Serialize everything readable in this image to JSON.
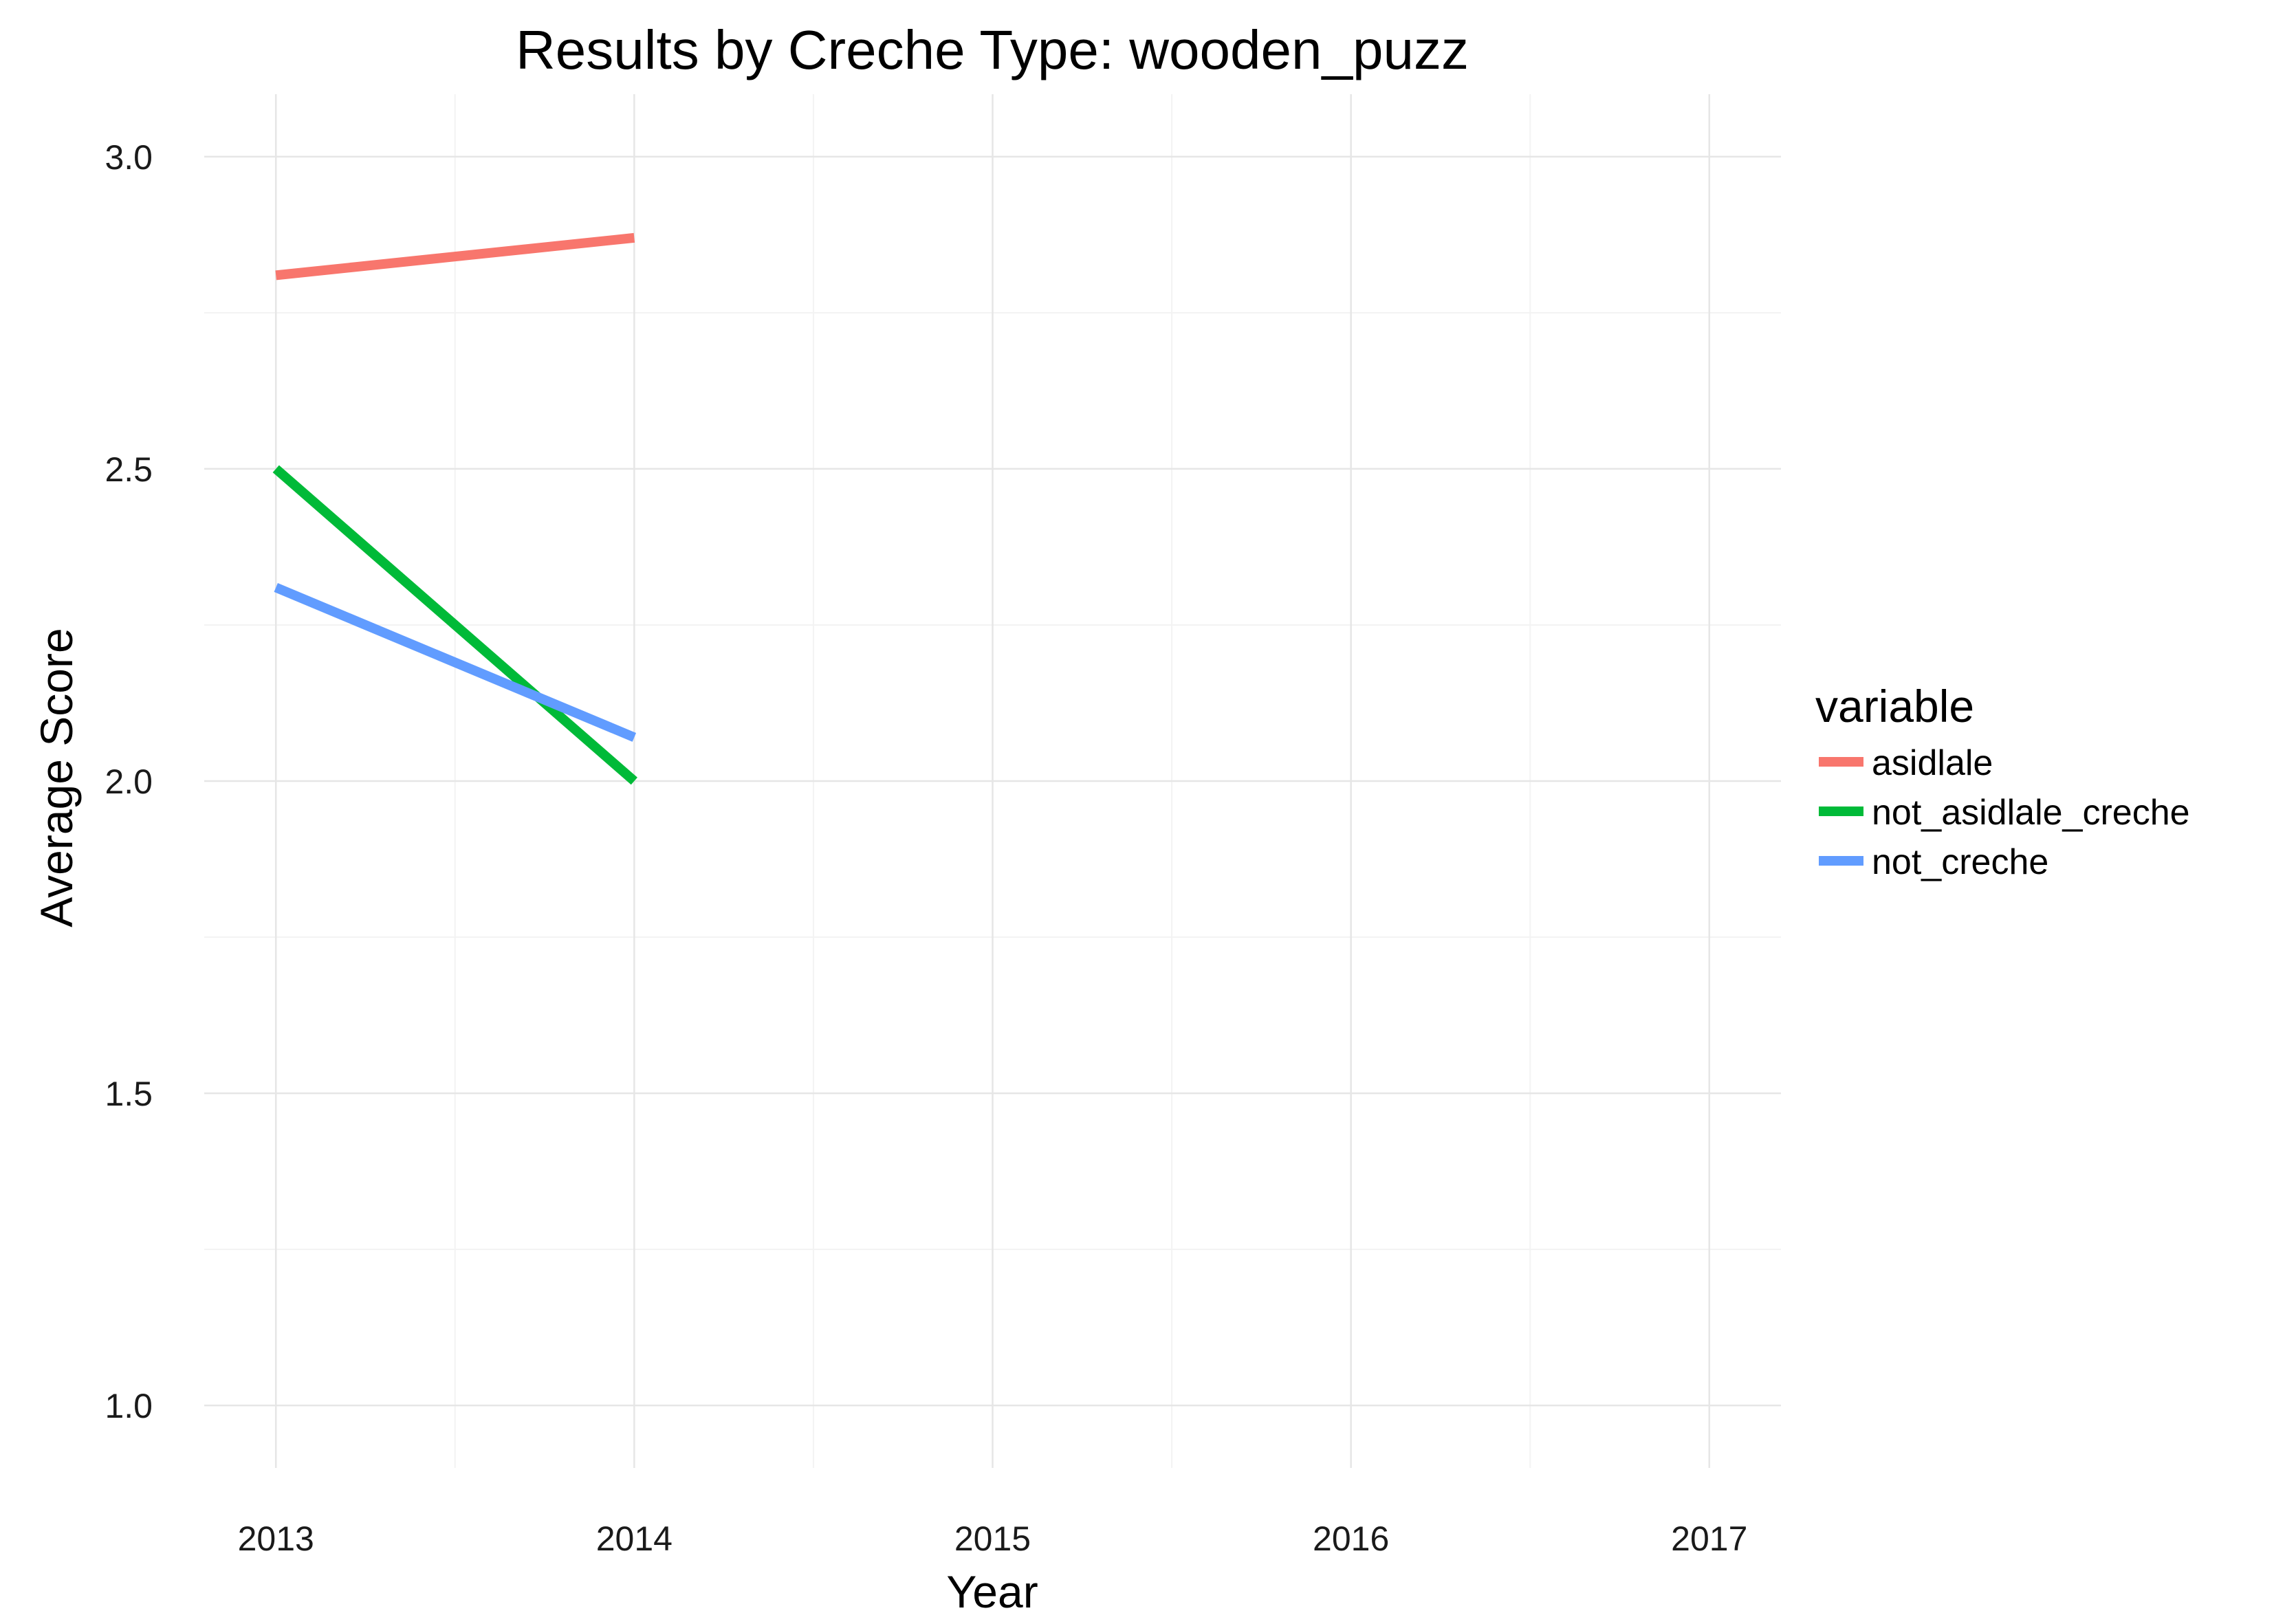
{
  "chart_data": {
    "type": "line",
    "title": "Results by Creche Type: wooden_puzz",
    "xlabel": "Year",
    "ylabel": "Average Score",
    "xlim": [
      2012.8,
      2017.2
    ],
    "ylim": [
      0.9,
      3.1
    ],
    "x_ticks": [
      "2013",
      "2014",
      "2015",
      "2016",
      "2017"
    ],
    "y_ticks": [
      "1.0",
      "1.5",
      "2.0",
      "2.5",
      "3.0"
    ],
    "grid": true,
    "legend_position": "right",
    "legend_title": "variable",
    "series": [
      {
        "name": "asidlale",
        "color": "#F8766D",
        "x": [
          2013,
          2014
        ],
        "values": [
          2.81,
          2.87
        ]
      },
      {
        "name": "not_asidlale_creche",
        "color": "#00BA38",
        "x": [
          2013,
          2014
        ],
        "values": [
          2.5,
          2.0
        ]
      },
      {
        "name": "not_creche",
        "color": "#619CFF",
        "x": [
          2013,
          2014
        ],
        "values": [
          2.31,
          2.07
        ]
      }
    ]
  }
}
